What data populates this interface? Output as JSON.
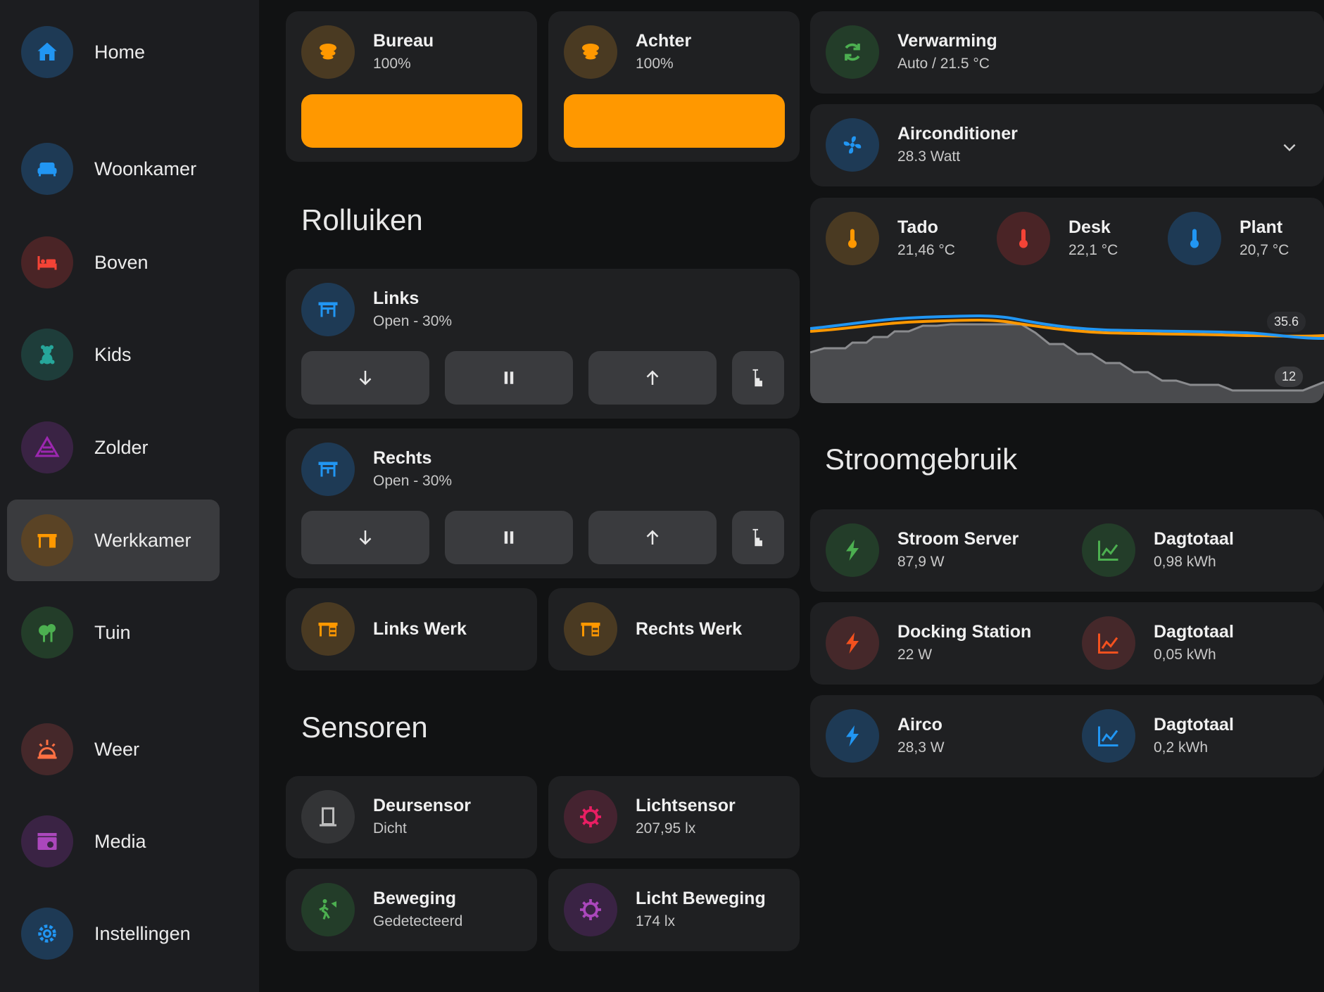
{
  "sidebar": {
    "items": [
      {
        "label": "Home",
        "icon": "home-icon",
        "color": "#2196f3"
      },
      {
        "label": "Woonkamer",
        "icon": "sofa-icon",
        "color": "#2196f3"
      },
      {
        "label": "Boven",
        "icon": "bed-icon",
        "color": "#f44336"
      },
      {
        "label": "Kids",
        "icon": "teddy-bear-icon",
        "color": "#26a69a"
      },
      {
        "label": "Zolder",
        "icon": "attic-icon",
        "color": "#9c27b0"
      },
      {
        "label": "Werkkamer",
        "icon": "desk-icon",
        "color": "#ff9800",
        "active": true
      },
      {
        "label": "Tuin",
        "icon": "tree-icon",
        "color": "#4caf50"
      },
      {
        "label": "Weer",
        "icon": "weather-icon",
        "color": "#ff7043"
      },
      {
        "label": "Media",
        "icon": "media-icon",
        "color": "#ab47bc"
      },
      {
        "label": "Instellingen",
        "icon": "settings-icon",
        "color": "#2196f3"
      }
    ]
  },
  "lights": {
    "bureau": {
      "name": "Bureau",
      "state": "100%",
      "brightness": 100
    },
    "achter": {
      "name": "Achter",
      "state": "100%",
      "brightness": 100
    }
  },
  "rolluiken": {
    "title": "Rolluiken",
    "links": {
      "name": "Links",
      "state": "Open - 30%"
    },
    "rechts": {
      "name": "Rechts",
      "state": "Open - 30%"
    }
  },
  "desks": {
    "links_werk": "Links Werk",
    "rechts_werk": "Rechts Werk"
  },
  "sensoren": {
    "title": "Sensoren",
    "deursensor": {
      "name": "Deursensor",
      "state": "Dicht"
    },
    "lichtsensor": {
      "name": "Lichtsensor",
      "state": "207,95 lx"
    },
    "beweging": {
      "name": "Beweging",
      "state": "Gedetecteerd"
    },
    "licht_beweging": {
      "name": "Licht Beweging",
      "state": "174 lx"
    }
  },
  "climate": {
    "verwarming": {
      "name": "Verwarming",
      "state": "Auto / 21.5 °C"
    },
    "airco": {
      "name": "Airconditioner",
      "state": "28.3 Watt"
    },
    "temps": [
      {
        "name": "Tado",
        "value": "21,46 °C",
        "color": "#ff9800"
      },
      {
        "name": "Desk",
        "value": "22,1 °C",
        "color": "#f44336"
      },
      {
        "name": "Plant",
        "value": "20,7 °C",
        "color": "#2196f3"
      }
    ],
    "graph_max_label": "35.6",
    "graph_min_label": "12"
  },
  "stroom": {
    "title": "Stroomgebruik",
    "rows": [
      {
        "name": "Stroom Server",
        "value": "87,9 W",
        "total_label": "Dagtotaal",
        "total": "0,98 kWh",
        "color": "#4caf50"
      },
      {
        "name": "Docking Station",
        "value": "22 W",
        "total_label": "Dagtotaal",
        "total": "0,05 kWh",
        "color": "#f4511e"
      },
      {
        "name": "Airco",
        "value": "28,3 W",
        "total_label": "Dagtotaal",
        "total": "0,2 kWh",
        "color": "#2196f3"
      }
    ]
  },
  "colors": {
    "accent_orange": "#ff9800",
    "card_bg": "#1f2022",
    "button_bg": "#3a3b3e"
  }
}
